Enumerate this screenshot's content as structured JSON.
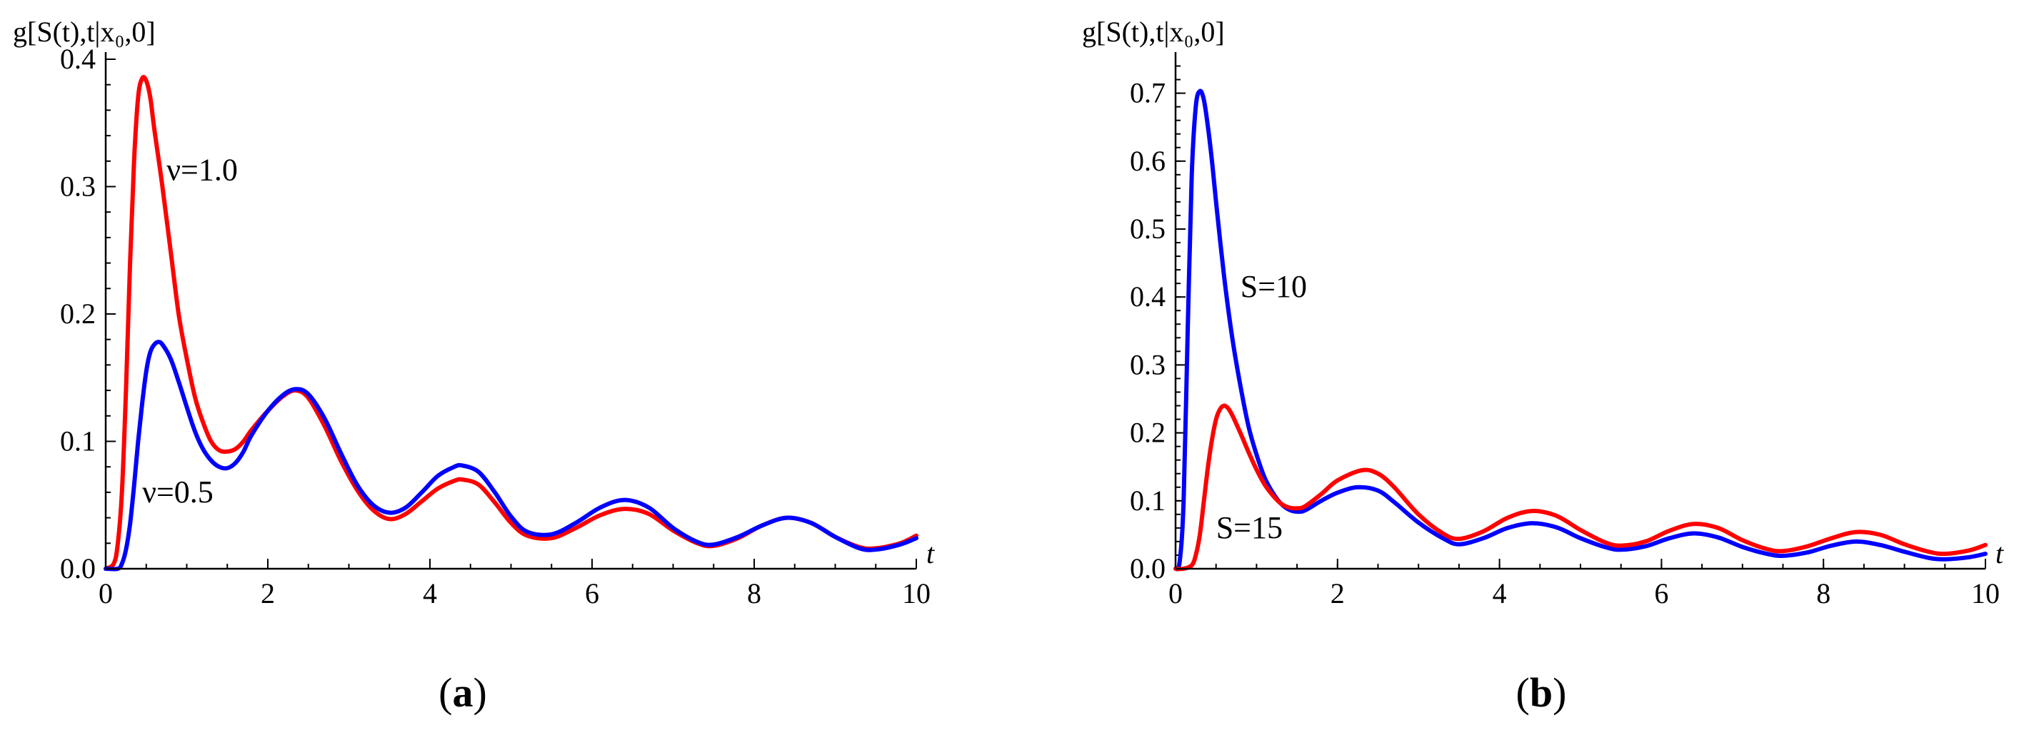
{
  "chart_data": [
    {
      "type": "line",
      "panel": "(a)",
      "panel_paren_open": "(",
      "panel_letter": "a",
      "panel_paren_close": ")",
      "ylabel": "g[S(t),t|x₀,0]",
      "xlabel": "t",
      "xlim": [
        0,
        10
      ],
      "ylim": [
        0,
        0.4
      ],
      "xticks": [
        "0",
        "2",
        "4",
        "6",
        "8",
        "10"
      ],
      "yticks": [
        "0.0",
        "0.1",
        "0.2",
        "0.3",
        "0.4"
      ],
      "grid": false,
      "annotations": [
        {
          "text": "ν=1.0",
          "x": 0.75,
          "y": 0.305
        },
        {
          "text": "ν=0.5",
          "x": 0.45,
          "y": 0.052
        }
      ],
      "series": [
        {
          "color": "#ff0000",
          "x": [
            0.0,
            0.1,
            0.15,
            0.2,
            0.25,
            0.3,
            0.35,
            0.4,
            0.45,
            0.5,
            0.55,
            0.6,
            0.7,
            0.8,
            0.9,
            1.0,
            1.1,
            1.2,
            1.3,
            1.4,
            1.5,
            1.6,
            1.7,
            1.8,
            2.0,
            2.2,
            2.35,
            2.5,
            2.7,
            2.9,
            3.1,
            3.3,
            3.5,
            3.7,
            3.9,
            4.1,
            4.3,
            4.4,
            4.6,
            4.8,
            5.0,
            5.2,
            5.5,
            5.8,
            6.1,
            6.4,
            6.7,
            7.0,
            7.3,
            7.5,
            7.8,
            8.1,
            8.4,
            8.7,
            9.0,
            9.3,
            9.5,
            9.8,
            10.0
          ],
          "y": [
            0.0,
            0.004,
            0.02,
            0.06,
            0.14,
            0.24,
            0.32,
            0.37,
            0.385,
            0.383,
            0.37,
            0.345,
            0.3,
            0.25,
            0.2,
            0.165,
            0.135,
            0.115,
            0.1,
            0.093,
            0.092,
            0.094,
            0.1,
            0.109,
            0.124,
            0.136,
            0.14,
            0.134,
            0.112,
            0.085,
            0.062,
            0.046,
            0.039,
            0.043,
            0.053,
            0.063,
            0.069,
            0.07,
            0.066,
            0.052,
            0.036,
            0.026,
            0.024,
            0.032,
            0.042,
            0.047,
            0.043,
            0.03,
            0.02,
            0.018,
            0.024,
            0.034,
            0.04,
            0.036,
            0.025,
            0.017,
            0.016,
            0.02,
            0.026
          ]
        },
        {
          "color": "#0000ff",
          "x": [
            0.0,
            0.15,
            0.2,
            0.25,
            0.3,
            0.35,
            0.4,
            0.45,
            0.5,
            0.55,
            0.6,
            0.65,
            0.7,
            0.8,
            0.9,
            1.0,
            1.1,
            1.2,
            1.3,
            1.4,
            1.5,
            1.6,
            1.7,
            1.8,
            2.0,
            2.2,
            2.35,
            2.5,
            2.7,
            2.9,
            3.1,
            3.3,
            3.5,
            3.7,
            3.9,
            4.1,
            4.3,
            4.4,
            4.6,
            4.8,
            5.0,
            5.2,
            5.5,
            5.8,
            6.1,
            6.4,
            6.7,
            7.0,
            7.3,
            7.5,
            7.8,
            8.1,
            8.4,
            8.7,
            9.0,
            9.3,
            9.5,
            9.8,
            10.0
          ],
          "y": [
            0.0,
            0.0,
            0.004,
            0.015,
            0.035,
            0.065,
            0.1,
            0.13,
            0.155,
            0.17,
            0.176,
            0.178,
            0.176,
            0.165,
            0.147,
            0.127,
            0.108,
            0.094,
            0.085,
            0.08,
            0.079,
            0.083,
            0.092,
            0.105,
            0.124,
            0.137,
            0.141,
            0.137,
            0.118,
            0.091,
            0.066,
            0.05,
            0.044,
            0.048,
            0.06,
            0.073,
            0.08,
            0.081,
            0.076,
            0.06,
            0.041,
            0.029,
            0.027,
            0.036,
            0.048,
            0.054,
            0.048,
            0.032,
            0.021,
            0.019,
            0.025,
            0.034,
            0.04,
            0.036,
            0.025,
            0.016,
            0.015,
            0.019,
            0.024
          ]
        }
      ]
    },
    {
      "type": "line",
      "panel": "(b)",
      "panel_paren_open": "(",
      "panel_letter": "b",
      "panel_paren_close": ")",
      "ylabel": "g[S(t),t|x₀,0]",
      "xlabel": "t",
      "xlim": [
        0,
        10
      ],
      "ylim": [
        0,
        0.75
      ],
      "xticks": [
        "0",
        "2",
        "4",
        "6",
        "8",
        "10"
      ],
      "yticks": [
        "0.0",
        "0.1",
        "0.2",
        "0.3",
        "0.4",
        "0.5",
        "0.6",
        "0.7"
      ],
      "grid": false,
      "annotations": [
        {
          "text": "S=10",
          "x": 0.8,
          "y": 0.4
        },
        {
          "text": "S=15",
          "x": 0.5,
          "y": 0.045
        }
      ],
      "series": [
        {
          "color": "#0000ff",
          "x": [
            0.0,
            0.05,
            0.1,
            0.15,
            0.2,
            0.25,
            0.3,
            0.35,
            0.4,
            0.45,
            0.5,
            0.6,
            0.7,
            0.8,
            0.9,
            1.0,
            1.1,
            1.2,
            1.3,
            1.4,
            1.5,
            1.6,
            1.8,
            2.0,
            2.25,
            2.5,
            2.7,
            3.0,
            3.3,
            3.5,
            3.8,
            4.1,
            4.4,
            4.7,
            5.0,
            5.3,
            5.5,
            5.8,
            6.1,
            6.4,
            6.7,
            7.0,
            7.3,
            7.5,
            7.8,
            8.1,
            8.4,
            8.7,
            9.0,
            9.3,
            9.5,
            9.8,
            10.0
          ],
          "y": [
            0.0,
            0.01,
            0.1,
            0.35,
            0.58,
            0.68,
            0.703,
            0.69,
            0.65,
            0.6,
            0.54,
            0.43,
            0.34,
            0.27,
            0.21,
            0.168,
            0.134,
            0.112,
            0.096,
            0.087,
            0.084,
            0.086,
            0.1,
            0.112,
            0.12,
            0.115,
            0.098,
            0.068,
            0.045,
            0.036,
            0.045,
            0.06,
            0.067,
            0.061,
            0.045,
            0.032,
            0.028,
            0.033,
            0.045,
            0.052,
            0.046,
            0.032,
            0.022,
            0.019,
            0.024,
            0.034,
            0.04,
            0.035,
            0.025,
            0.016,
            0.014,
            0.017,
            0.022
          ]
        },
        {
          "color": "#ff0000",
          "x": [
            0.0,
            0.1,
            0.2,
            0.25,
            0.3,
            0.35,
            0.4,
            0.45,
            0.5,
            0.55,
            0.6,
            0.65,
            0.7,
            0.8,
            0.9,
            1.0,
            1.1,
            1.2,
            1.3,
            1.4,
            1.5,
            1.6,
            1.8,
            2.0,
            2.3,
            2.5,
            2.7,
            3.0,
            3.3,
            3.5,
            3.8,
            4.1,
            4.4,
            4.7,
            5.0,
            5.3,
            5.5,
            5.8,
            6.1,
            6.4,
            6.7,
            7.0,
            7.3,
            7.5,
            7.8,
            8.1,
            8.4,
            8.7,
            9.0,
            9.3,
            9.5,
            9.8,
            10.0
          ],
          "y": [
            0.0,
            0.0,
            0.005,
            0.02,
            0.05,
            0.1,
            0.15,
            0.19,
            0.22,
            0.235,
            0.24,
            0.236,
            0.226,
            0.2,
            0.172,
            0.146,
            0.124,
            0.108,
            0.096,
            0.09,
            0.089,
            0.092,
            0.11,
            0.13,
            0.145,
            0.14,
            0.12,
            0.08,
            0.052,
            0.044,
            0.055,
            0.075,
            0.085,
            0.078,
            0.057,
            0.039,
            0.034,
            0.04,
            0.056,
            0.066,
            0.06,
            0.042,
            0.029,
            0.026,
            0.033,
            0.045,
            0.054,
            0.05,
            0.036,
            0.025,
            0.022,
            0.027,
            0.035
          ]
        }
      ]
    }
  ]
}
